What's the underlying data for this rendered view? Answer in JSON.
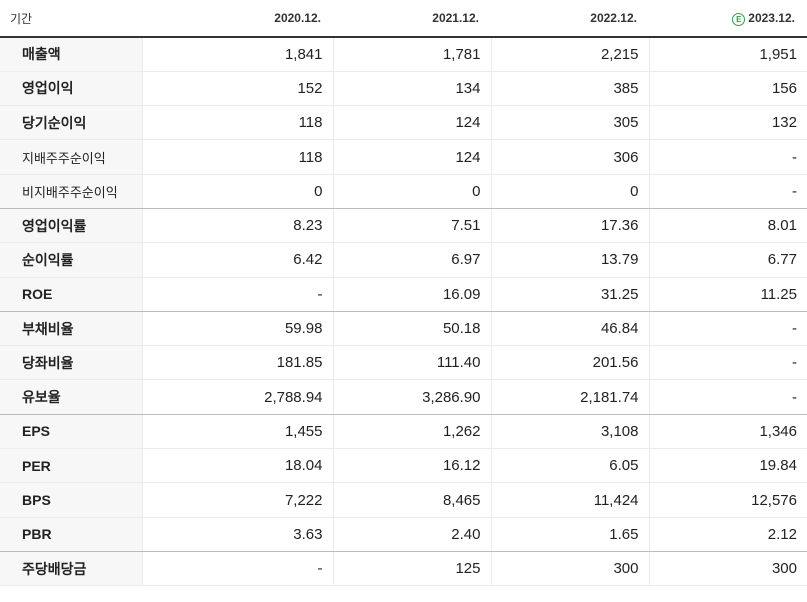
{
  "header": {
    "label": "기간",
    "periods": [
      "2020.12.",
      "2021.12.",
      "2022.12.",
      "2023.12."
    ],
    "estimate_marker": "E"
  },
  "rows": [
    {
      "label": "매출액",
      "values": [
        "1,841",
        "1,781",
        "2,215",
        "1,951"
      ]
    },
    {
      "label": "영업이익",
      "values": [
        "152",
        "134",
        "385",
        "156"
      ]
    },
    {
      "label": "당기순이익",
      "values": [
        "118",
        "124",
        "305",
        "132"
      ]
    },
    {
      "label": "지배주주순이익",
      "values": [
        "118",
        "124",
        "306",
        "-"
      ]
    },
    {
      "label": "비지배주주순이익",
      "values": [
        "0",
        "0",
        "0",
        "-"
      ]
    },
    {
      "label": "영업이익률",
      "values": [
        "8.23",
        "7.51",
        "17.36",
        "8.01"
      ]
    },
    {
      "label": "순이익률",
      "values": [
        "6.42",
        "6.97",
        "13.79",
        "6.77"
      ]
    },
    {
      "label": "ROE",
      "values": [
        "-",
        "16.09",
        "31.25",
        "11.25"
      ]
    },
    {
      "label": "부채비율",
      "values": [
        "59.98",
        "50.18",
        "46.84",
        "-"
      ]
    },
    {
      "label": "당좌비율",
      "values": [
        "181.85",
        "111.40",
        "201.56",
        "-"
      ]
    },
    {
      "label": "유보율",
      "values": [
        "2,788.94",
        "3,286.90",
        "2,181.74",
        "-"
      ]
    },
    {
      "label": "EPS",
      "values": [
        "1,455",
        "1,262",
        "3,108",
        "1,346"
      ]
    },
    {
      "label": "PER",
      "values": [
        "18.04",
        "16.12",
        "6.05",
        "19.84"
      ]
    },
    {
      "label": "BPS",
      "values": [
        "7,222",
        "8,465",
        "11,424",
        "12,576"
      ]
    },
    {
      "label": "PBR",
      "values": [
        "3.63",
        "2.40",
        "1.65",
        "2.12"
      ]
    },
    {
      "label": "주당배당금",
      "values": [
        "-",
        "125",
        "300",
        "300"
      ]
    }
  ]
}
